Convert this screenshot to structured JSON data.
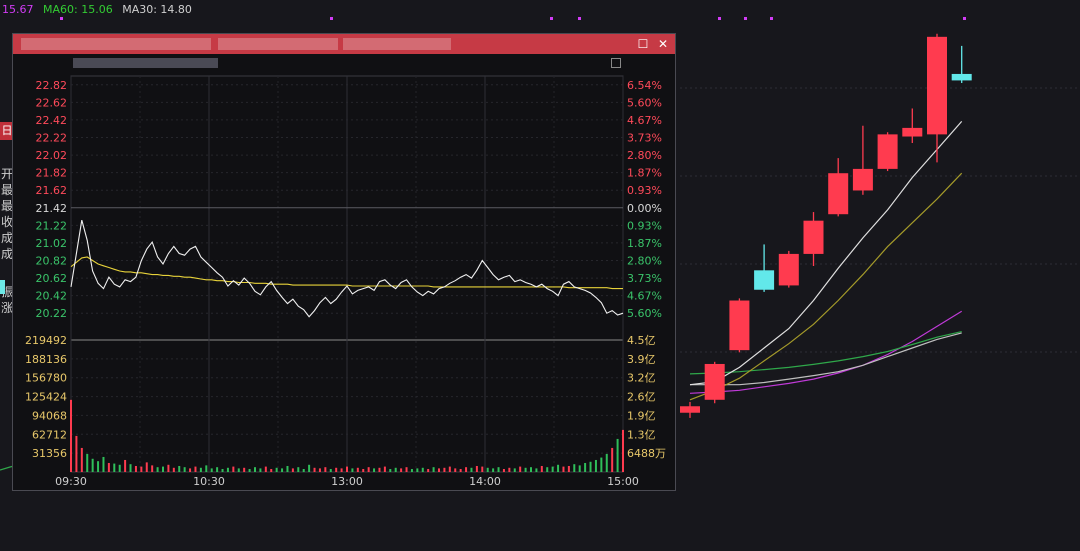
{
  "ma_bar": {
    "first_value": "15.67",
    "ma60_label": "MA60: 15.06",
    "ma30_label": "MA30: 14.80",
    "colors": {
      "first": "#d23cf5",
      "ma60": "#33cc33",
      "ma30": "#cfcfcf"
    }
  },
  "left_sidebar": {
    "tab": "日",
    "chars": [
      "开",
      "最",
      "最",
      "收",
      "成",
      "成",
      "振",
      "涨"
    ]
  },
  "popup": {
    "close_icon": "close-icon",
    "maximize_icon": "maximize-icon"
  },
  "chart_data": [
    {
      "type": "line",
      "price_ticks": [
        "22.82",
        "22.62",
        "22.42",
        "22.22",
        "22.02",
        "21.82",
        "21.62",
        "21.42",
        "21.22",
        "21.02",
        "20.82",
        "20.62",
        "20.42",
        "20.22"
      ],
      "pct_ticks": [
        "6.54%",
        "5.60%",
        "4.67%",
        "3.73%",
        "2.80%",
        "1.87%",
        "0.93%",
        "0.00%",
        "0.93%",
        "1.87%",
        "2.80%",
        "3.73%",
        "4.67%",
        "5.60%"
      ],
      "volume_ticks": [
        "219492",
        "188136",
        "156780",
        "125424",
        "94068",
        "62712",
        "31356"
      ],
      "amount_ticks": [
        "4.5亿",
        "3.9亿",
        "3.2亿",
        "2.6亿",
        "1.9亿",
        "1.3亿",
        "6488万"
      ],
      "time_ticks": [
        "09:30",
        "10:30",
        "13:00",
        "14:00",
        "15:00"
      ],
      "prev_close": 21.42,
      "price_ylim": [
        20.12,
        22.92
      ],
      "volume_ylim": [
        0,
        219492
      ],
      "price_series": [
        20.52,
        20.9,
        21.28,
        21.05,
        20.7,
        20.56,
        20.5,
        20.63,
        20.55,
        20.52,
        20.6,
        20.58,
        20.63,
        20.82,
        20.95,
        21.03,
        20.86,
        20.78,
        20.9,
        20.98,
        20.9,
        20.88,
        20.95,
        20.98,
        20.86,
        20.8,
        20.74,
        20.68,
        20.63,
        20.53,
        20.59,
        20.54,
        20.62,
        20.56,
        20.47,
        20.43,
        20.52,
        20.58,
        20.48,
        20.4,
        20.33,
        20.38,
        20.3,
        20.26,
        20.18,
        20.25,
        20.34,
        20.4,
        20.33,
        20.38,
        20.46,
        20.53,
        20.44,
        20.48,
        20.5,
        20.52,
        20.48,
        20.58,
        20.6,
        20.54,
        20.5,
        20.57,
        20.6,
        20.52,
        20.46,
        20.42,
        20.47,
        20.44,
        20.5,
        20.52,
        20.56,
        20.59,
        20.63,
        20.66,
        20.62,
        20.71,
        20.82,
        20.74,
        20.66,
        20.6,
        20.63,
        20.65,
        20.58,
        20.6,
        20.57,
        20.55,
        20.52,
        20.55,
        20.5,
        20.47,
        20.42,
        20.55,
        20.58,
        20.52,
        20.5,
        20.48,
        20.45,
        20.4,
        20.34,
        20.22,
        20.25,
        20.2,
        20.22
      ],
      "avg_series": [
        20.75,
        20.8,
        20.85,
        20.86,
        20.82,
        20.78,
        20.76,
        20.74,
        20.72,
        20.7,
        20.69,
        20.69,
        20.68,
        20.68,
        20.67,
        20.66,
        20.66,
        20.65,
        20.65,
        20.64,
        20.64,
        20.63,
        20.63,
        20.62,
        20.61,
        20.6,
        20.6,
        20.59,
        20.59,
        20.58,
        20.58,
        20.57,
        20.57,
        20.57,
        20.56,
        20.56,
        20.56,
        20.55,
        20.55,
        20.55,
        20.55,
        20.54,
        20.54,
        20.54,
        20.54,
        20.54,
        20.54,
        20.54,
        20.54,
        20.54,
        20.54,
        20.54,
        20.53,
        20.53,
        20.53,
        20.53,
        20.53,
        20.53,
        20.53,
        20.53,
        20.53,
        20.53,
        20.53,
        20.53,
        20.53,
        20.53,
        20.53,
        20.52,
        20.52,
        20.52,
        20.52,
        20.52,
        20.52,
        20.52,
        20.52,
        20.52,
        20.52,
        20.52,
        20.52,
        20.52,
        20.52,
        20.52,
        20.52,
        20.52,
        20.52,
        20.52,
        20.52,
        20.52,
        20.52,
        20.52,
        20.52,
        20.52,
        20.51,
        20.51,
        20.51,
        20.51,
        20.51,
        20.51,
        20.51,
        20.51,
        20.5,
        20.5,
        20.5
      ],
      "volume_series": [
        120000,
        60000,
        40000,
        30000,
        22000,
        18000,
        25000,
        15000,
        14000,
        12000,
        20000,
        13000,
        10000,
        9000,
        16000,
        11000,
        8000,
        9000,
        12000,
        7000,
        10000,
        8000,
        6000,
        9000,
        7000,
        11000,
        6000,
        8000,
        5000,
        7000,
        9000,
        6000,
        7000,
        5000,
        8000,
        6000,
        9000,
        5000,
        7000,
        6000,
        10000,
        6000,
        8000,
        5000,
        12000,
        7000,
        6000,
        8000,
        5000,
        7000,
        6000,
        9000,
        6000,
        7000,
        5000,
        8000,
        6000,
        7000,
        9000,
        5000,
        7000,
        6000,
        8000,
        5000,
        6000,
        7000,
        5000,
        8000,
        6000,
        7000,
        9000,
        6000,
        5000,
        8000,
        7000,
        10000,
        9000,
        7000,
        6000,
        8000,
        5000,
        7000,
        6000,
        9000,
        7000,
        8000,
        6000,
        10000,
        8000,
        9000,
        12000,
        9000,
        10000,
        13000,
        11000,
        15000,
        17000,
        20000,
        24000,
        30000,
        40000,
        55000,
        70000
      ]
    },
    {
      "type": "candlestick",
      "candles": [
        {
          "open": 13.9,
          "close": 14.05,
          "high": 14.15,
          "low": 13.78
        },
        {
          "open": 14.2,
          "close": 15.03,
          "high": 15.08,
          "low": 14.12
        },
        {
          "open": 15.35,
          "close": 16.5,
          "high": 16.55,
          "low": 15.3
        },
        {
          "open": 17.2,
          "close": 16.75,
          "high": 17.8,
          "low": 16.7
        },
        {
          "open": 16.85,
          "close": 17.58,
          "high": 17.65,
          "low": 16.8
        },
        {
          "open": 17.58,
          "close": 18.35,
          "high": 18.55,
          "low": 17.3
        },
        {
          "open": 18.5,
          "close": 19.45,
          "high": 19.8,
          "low": 18.45
        },
        {
          "open": 19.05,
          "close": 19.55,
          "high": 20.55,
          "low": 18.95
        },
        {
          "open": 19.55,
          "close": 20.35,
          "high": 20.4,
          "low": 19.5
        },
        {
          "open": 20.3,
          "close": 20.5,
          "high": 20.95,
          "low": 20.15
        },
        {
          "open": 20.35,
          "close": 22.61,
          "high": 22.68,
          "low": 19.7
        },
        {
          "open": 21.75,
          "close": 21.6,
          "high": 22.4,
          "low": 21.54
        }
      ],
      "ma_short": [
        14.55,
        14.62,
        14.95,
        15.4,
        15.85,
        16.5,
        17.25,
        17.95,
        18.6,
        19.35,
        20.0,
        20.65
      ],
      "ma_mid": [
        14.2,
        14.42,
        14.7,
        15.1,
        15.5,
        15.95,
        16.5,
        17.1,
        17.75,
        18.3,
        18.85,
        19.45
      ],
      "ma60_series": [
        14.8,
        14.82,
        14.85,
        14.9,
        14.95,
        15.02,
        15.1,
        15.2,
        15.32,
        15.48,
        15.65,
        15.78
      ],
      "ma30_series": [
        14.55,
        14.55,
        14.55,
        14.6,
        14.68,
        14.76,
        14.85,
        15.0,
        15.2,
        15.4,
        15.6,
        15.75
      ],
      "ma_purple": [
        14.35,
        14.38,
        14.42,
        14.5,
        14.58,
        14.68,
        14.82,
        15.0,
        15.25,
        15.55,
        15.9,
        16.25
      ]
    }
  ]
}
